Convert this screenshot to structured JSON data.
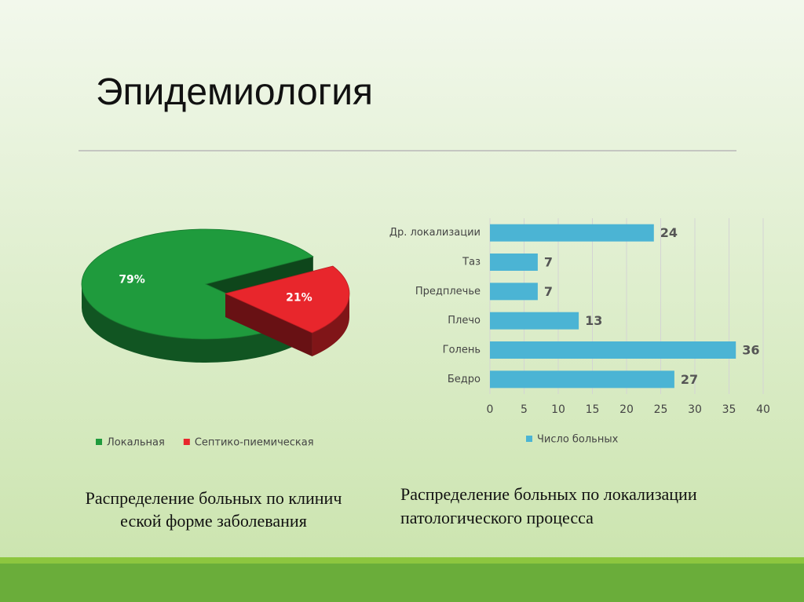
{
  "title": "Эпидемиология",
  "captions": [
    [
      "Распределение больных по клинич",
      "еской форме заболевания"
    ],
    [
      "Распределение больных по локализации",
      "патологического процесса"
    ]
  ],
  "chart_data": [
    {
      "type": "pie",
      "categories": [
        "Локальная",
        "Септико-пиемическая"
      ],
      "values": [
        79,
        21
      ],
      "value_labels": [
        "79%",
        "21%"
      ],
      "colors": [
        "#1f9b3d",
        "#e8262c"
      ],
      "legend": "bottom"
    },
    {
      "type": "hbar",
      "categories": [
        "Др. локализации",
        "Таз",
        "Предплечье",
        "Плечо",
        "Голень",
        "Бедро"
      ],
      "series": [
        {
          "name": "Число больных",
          "color": "#4bb4d4",
          "values": [
            24,
            7,
            7,
            13,
            36,
            27
          ]
        }
      ],
      "xlim": [
        0,
        40
      ],
      "xticks": [
        0,
        5,
        10,
        15,
        20,
        25,
        30,
        35,
        40
      ],
      "grid": true,
      "legend": "bottom"
    }
  ]
}
